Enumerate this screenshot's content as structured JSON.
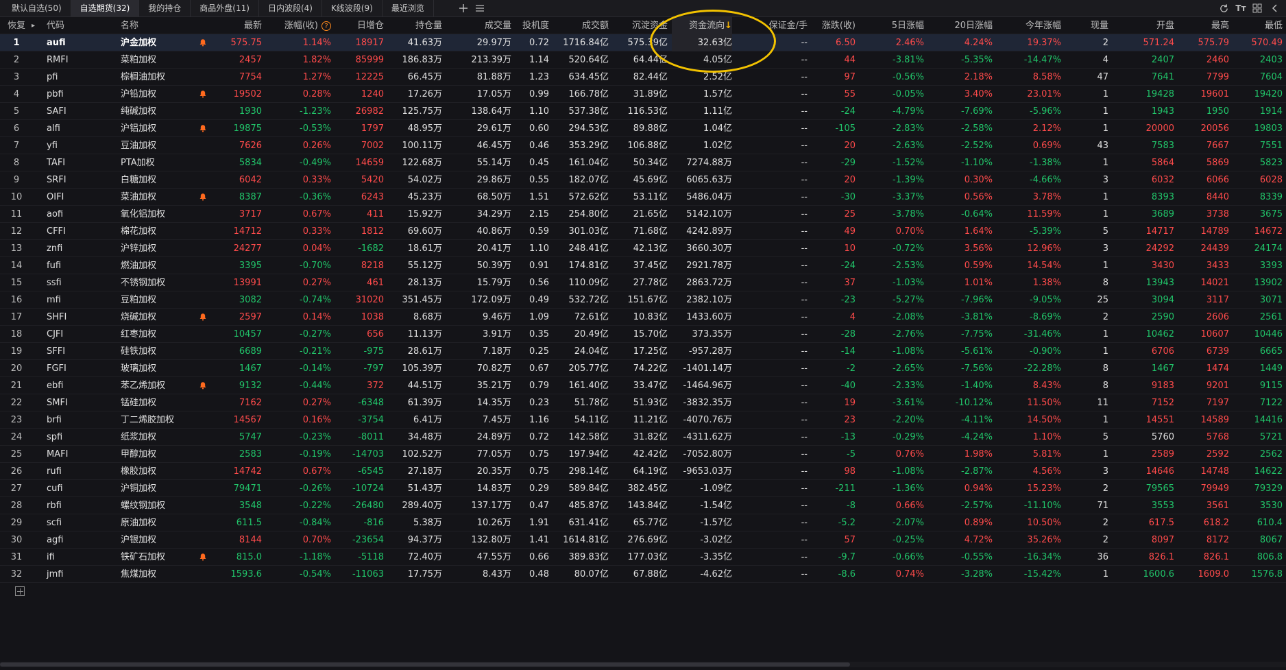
{
  "tabs": [
    {
      "label": "默认自选(50)"
    },
    {
      "label": "自选期货(32)"
    },
    {
      "label": "我的持仓"
    },
    {
      "label": "商品外盘(11)"
    },
    {
      "label": "日内波段(4)"
    },
    {
      "label": "K线波段(9)"
    },
    {
      "label": "最近浏览"
    }
  ],
  "active_tab": 1,
  "toolbar_icons": [
    "add-icon",
    "list-icon",
    "refresh-icon",
    "font-size-icon",
    "grid-icon",
    "collapse-icon"
  ],
  "header": {
    "restore": "恢复",
    "cols": [
      "代码",
      "名称",
      "最新",
      "涨幅(收)",
      "日增仓",
      "持仓量",
      "成交量",
      "投机度",
      "成交额",
      "沉淀资金",
      "资金流向",
      "保证金/手",
      "涨跌(收)",
      "5日涨幅",
      "20日涨幅",
      "今年涨幅",
      "现量",
      "开盘",
      "最高",
      "最低"
    ],
    "sort_indicator": "↓",
    "help_icon": "?"
  },
  "colors": {
    "up": "#ff4b4b",
    "down": "#21c56a",
    "accent": "#ff8a1e",
    "highlight_circle": "#f2c200"
  },
  "rows": [
    [
      "1",
      "aufi",
      "沪金加权",
      true,
      "575.75",
      "1.14%",
      "18917",
      "41.63万",
      "29.97万",
      "0.72",
      "1716.84亿",
      "575.39亿",
      "32.63亿",
      "--",
      "6.50",
      "2.46%",
      "4.24%",
      "19.37%",
      "2",
      "571.24",
      "575.79",
      "570.49"
    ],
    [
      "2",
      "RMFI",
      "菜粕加权",
      false,
      "2457",
      "1.82%",
      "85999",
      "186.83万",
      "213.39万",
      "1.14",
      "520.64亿",
      "64.44亿",
      "4.05亿",
      "--",
      "44",
      "-3.81%",
      "-5.35%",
      "-14.47%",
      "4",
      "2407",
      "2460",
      "2403"
    ],
    [
      "3",
      "pfi",
      "棕榈油加权",
      false,
      "7754",
      "1.27%",
      "12225",
      "66.45万",
      "81.88万",
      "1.23",
      "634.45亿",
      "82.44亿",
      "2.52亿",
      "--",
      "97",
      "-0.56%",
      "2.18%",
      "8.58%",
      "47",
      "7641",
      "7799",
      "7604"
    ],
    [
      "4",
      "pbfi",
      "沪铅加权",
      true,
      "19502",
      "0.28%",
      "1240",
      "17.26万",
      "17.05万",
      "0.99",
      "166.78亿",
      "31.89亿",
      "1.57亿",
      "--",
      "55",
      "-0.05%",
      "3.40%",
      "23.01%",
      "1",
      "19428",
      "19601",
      "19420"
    ],
    [
      "5",
      "SAFI",
      "纯碱加权",
      false,
      "1930",
      "-1.23%",
      "26982",
      "125.75万",
      "138.64万",
      "1.10",
      "537.38亿",
      "116.53亿",
      "1.11亿",
      "--",
      "-24",
      "-4.79%",
      "-7.69%",
      "-5.96%",
      "1",
      "1943",
      "1950",
      "1914"
    ],
    [
      "6",
      "alfi",
      "沪铝加权",
      true,
      "19875",
      "-0.53%",
      "1797",
      "48.95万",
      "29.61万",
      "0.60",
      "294.53亿",
      "89.88亿",
      "1.04亿",
      "--",
      "-105",
      "-2.83%",
      "-2.58%",
      "2.12%",
      "1",
      "20000",
      "20056",
      "19803"
    ],
    [
      "7",
      "yfi",
      "豆油加权",
      false,
      "7626",
      "0.26%",
      "7002",
      "100.11万",
      "46.45万",
      "0.46",
      "353.29亿",
      "106.88亿",
      "1.02亿",
      "--",
      "20",
      "-2.63%",
      "-2.52%",
      "0.69%",
      "43",
      "7583",
      "7667",
      "7551"
    ],
    [
      "8",
      "TAFI",
      "PTA加权",
      false,
      "5834",
      "-0.49%",
      "14659",
      "122.68万",
      "55.14万",
      "0.45",
      "161.04亿",
      "50.34亿",
      "7274.88万",
      "--",
      "-29",
      "-1.52%",
      "-1.10%",
      "-1.38%",
      "1",
      "5864",
      "5869",
      "5823"
    ],
    [
      "9",
      "SRFI",
      "白糖加权",
      false,
      "6042",
      "0.33%",
      "5420",
      "54.02万",
      "29.86万",
      "0.55",
      "182.07亿",
      "45.69亿",
      "6065.63万",
      "--",
      "20",
      "-1.39%",
      "0.30%",
      "-4.66%",
      "3",
      "6032",
      "6066",
      "6028"
    ],
    [
      "10",
      "OIFI",
      "菜油加权",
      true,
      "8387",
      "-0.36%",
      "6243",
      "45.23万",
      "68.50万",
      "1.51",
      "572.62亿",
      "53.11亿",
      "5486.04万",
      "--",
      "-30",
      "-3.37%",
      "0.56%",
      "3.78%",
      "1",
      "8393",
      "8440",
      "8339"
    ],
    [
      "11",
      "aofi",
      "氧化铝加权",
      false,
      "3717",
      "0.67%",
      "411",
      "15.92万",
      "34.29万",
      "2.15",
      "254.80亿",
      "21.65亿",
      "5142.10万",
      "--",
      "25",
      "-3.78%",
      "-0.64%",
      "11.59%",
      "1",
      "3689",
      "3738",
      "3675"
    ],
    [
      "12",
      "CFFI",
      "棉花加权",
      false,
      "14712",
      "0.33%",
      "1812",
      "69.60万",
      "40.86万",
      "0.59",
      "301.03亿",
      "71.68亿",
      "4242.89万",
      "--",
      "49",
      "0.70%",
      "1.64%",
      "-5.39%",
      "5",
      "14717",
      "14789",
      "14672"
    ],
    [
      "13",
      "znfi",
      "沪锌加权",
      false,
      "24277",
      "0.04%",
      "-1682",
      "18.61万",
      "20.41万",
      "1.10",
      "248.41亿",
      "42.13亿",
      "3660.30万",
      "--",
      "10",
      "-0.72%",
      "3.56%",
      "12.96%",
      "3",
      "24292",
      "24439",
      "24174"
    ],
    [
      "14",
      "fufi",
      "燃油加权",
      false,
      "3395",
      "-0.70%",
      "8218",
      "55.12万",
      "50.39万",
      "0.91",
      "174.81亿",
      "37.45亿",
      "2921.78万",
      "--",
      "-24",
      "-2.53%",
      "0.59%",
      "14.54%",
      "1",
      "3430",
      "3433",
      "3393"
    ],
    [
      "15",
      "ssfi",
      "不锈钢加权",
      false,
      "13991",
      "0.27%",
      "461",
      "28.13万",
      "15.79万",
      "0.56",
      "110.09亿",
      "27.78亿",
      "2863.72万",
      "--",
      "37",
      "-1.03%",
      "1.01%",
      "1.38%",
      "8",
      "13943",
      "14021",
      "13902"
    ],
    [
      "16",
      "mfi",
      "豆粕加权",
      false,
      "3082",
      "-0.74%",
      "31020",
      "351.45万",
      "172.09万",
      "0.49",
      "532.72亿",
      "151.67亿",
      "2382.10万",
      "--",
      "-23",
      "-5.27%",
      "-7.96%",
      "-9.05%",
      "25",
      "3094",
      "3117",
      "3071"
    ],
    [
      "17",
      "SHFI",
      "烧碱加权",
      true,
      "2597",
      "0.14%",
      "1038",
      "8.68万",
      "9.46万",
      "1.09",
      "72.61亿",
      "10.83亿",
      "1433.60万",
      "--",
      "4",
      "-2.08%",
      "-3.81%",
      "-8.69%",
      "2",
      "2590",
      "2606",
      "2561"
    ],
    [
      "18",
      "CJFI",
      "红枣加权",
      false,
      "10457",
      "-0.27%",
      "656",
      "11.13万",
      "3.91万",
      "0.35",
      "20.49亿",
      "15.70亿",
      "373.35万",
      "--",
      "-28",
      "-2.76%",
      "-7.75%",
      "-31.46%",
      "1",
      "10462",
      "10607",
      "10446"
    ],
    [
      "19",
      "SFFI",
      "硅铁加权",
      false,
      "6689",
      "-0.21%",
      "-975",
      "28.61万",
      "7.18万",
      "0.25",
      "24.04亿",
      "17.25亿",
      "-957.28万",
      "--",
      "-14",
      "-1.08%",
      "-5.61%",
      "-0.90%",
      "1",
      "6706",
      "6739",
      "6665"
    ],
    [
      "20",
      "FGFI",
      "玻璃加权",
      false,
      "1467",
      "-0.14%",
      "-797",
      "105.39万",
      "70.82万",
      "0.67",
      "205.77亿",
      "74.22亿",
      "-1401.14万",
      "--",
      "-2",
      "-2.65%",
      "-7.56%",
      "-22.28%",
      "8",
      "1467",
      "1474",
      "1449"
    ],
    [
      "21",
      "ebfi",
      "苯乙烯加权",
      true,
      "9132",
      "-0.44%",
      "372",
      "44.51万",
      "35.21万",
      "0.79",
      "161.40亿",
      "33.47亿",
      "-1464.96万",
      "--",
      "-40",
      "-2.33%",
      "-1.40%",
      "8.43%",
      "8",
      "9183",
      "9201",
      "9115"
    ],
    [
      "22",
      "SMFI",
      "锰硅加权",
      false,
      "7162",
      "0.27%",
      "-6348",
      "61.39万",
      "14.35万",
      "0.23",
      "51.78亿",
      "51.93亿",
      "-3832.35万",
      "--",
      "19",
      "-3.61%",
      "-10.12%",
      "11.50%",
      "11",
      "7152",
      "7197",
      "7122"
    ],
    [
      "23",
      "brfi",
      "丁二烯胶加权",
      false,
      "14567",
      "0.16%",
      "-3754",
      "6.41万",
      "7.45万",
      "1.16",
      "54.11亿",
      "11.21亿",
      "-4070.76万",
      "--",
      "23",
      "-2.20%",
      "-4.11%",
      "14.50%",
      "1",
      "14551",
      "14589",
      "14416"
    ],
    [
      "24",
      "spfi",
      "纸浆加权",
      false,
      "5747",
      "-0.23%",
      "-8011",
      "34.48万",
      "24.89万",
      "0.72",
      "142.58亿",
      "31.82亿",
      "-4311.62万",
      "--",
      "-13",
      "-0.29%",
      "-4.24%",
      "1.10%",
      "5",
      "5760",
      "5768",
      "5721"
    ],
    [
      "25",
      "MAFI",
      "甲醇加权",
      false,
      "2583",
      "-0.19%",
      "-14703",
      "102.52万",
      "77.05万",
      "0.75",
      "197.94亿",
      "42.42亿",
      "-7052.80万",
      "--",
      "-5",
      "0.76%",
      "1.98%",
      "5.81%",
      "1",
      "2589",
      "2592",
      "2562"
    ],
    [
      "26",
      "rufi",
      "橡胶加权",
      false,
      "14742",
      "0.67%",
      "-6545",
      "27.18万",
      "20.35万",
      "0.75",
      "298.14亿",
      "64.19亿",
      "-9653.03万",
      "--",
      "98",
      "-1.08%",
      "-2.87%",
      "4.56%",
      "3",
      "14646",
      "14748",
      "14622"
    ],
    [
      "27",
      "cufi",
      "沪铜加权",
      false,
      "79471",
      "-0.26%",
      "-10724",
      "51.43万",
      "14.83万",
      "0.29",
      "589.84亿",
      "382.45亿",
      "-1.09亿",
      "--",
      "-211",
      "-1.36%",
      "0.94%",
      "15.23%",
      "2",
      "79565",
      "79949",
      "79329"
    ],
    [
      "28",
      "rbfi",
      "螺纹钢加权",
      false,
      "3548",
      "-0.22%",
      "-26480",
      "289.40万",
      "137.17万",
      "0.47",
      "485.87亿",
      "143.84亿",
      "-1.54亿",
      "--",
      "-8",
      "0.66%",
      "-2.57%",
      "-11.10%",
      "71",
      "3553",
      "3561",
      "3530"
    ],
    [
      "29",
      "scfi",
      "原油加权",
      false,
      "611.5",
      "-0.84%",
      "-816",
      "5.38万",
      "10.26万",
      "1.91",
      "631.41亿",
      "65.77亿",
      "-1.57亿",
      "--",
      "-5.2",
      "-2.07%",
      "0.89%",
      "10.50%",
      "2",
      "617.5",
      "618.2",
      "610.4"
    ],
    [
      "30",
      "agfi",
      "沪银加权",
      false,
      "8144",
      "0.70%",
      "-23654",
      "94.37万",
      "132.80万",
      "1.41",
      "1614.81亿",
      "276.69亿",
      "-3.02亿",
      "--",
      "57",
      "-0.25%",
      "4.72%",
      "35.26%",
      "2",
      "8097",
      "8172",
      "8067"
    ],
    [
      "31",
      "ifi",
      "铁矿石加权",
      true,
      "815.0",
      "-1.18%",
      "-5118",
      "72.40万",
      "47.55万",
      "0.66",
      "389.83亿",
      "177.03亿",
      "-3.35亿",
      "--",
      "-9.7",
      "-0.66%",
      "-0.55%",
      "-16.34%",
      "36",
      "826.1",
      "826.1",
      "806.8"
    ],
    [
      "32",
      "jmfi",
      "焦煤加权",
      false,
      "1593.6",
      "-0.54%",
      "-11063",
      "17.75万",
      "8.43万",
      "0.48",
      "80.07亿",
      "67.88亿",
      "-4.62亿",
      "--",
      "-8.6",
      "0.74%",
      "-3.28%",
      "-15.42%",
      "1",
      "1600.6",
      "1609.0",
      "1576.8"
    ]
  ]
}
